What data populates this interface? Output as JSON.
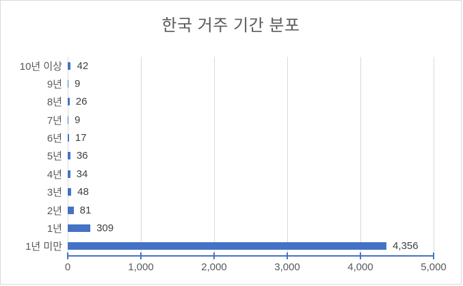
{
  "chart_data": {
    "type": "bar",
    "orientation": "horizontal",
    "title": "한국 거주 기간 분포",
    "categories": [
      "10년 이상",
      "9년",
      "8년",
      "7년",
      "6년",
      "5년",
      "4년",
      "3년",
      "2년",
      "1년",
      "1년 미만"
    ],
    "values": [
      42,
      9,
      26,
      9,
      17,
      36,
      34,
      48,
      81,
      309,
      4356
    ],
    "value_labels": [
      "42",
      "9",
      "26",
      "9",
      "17",
      "36",
      "34",
      "48",
      "81",
      "309",
      "4,356"
    ],
    "xlabel": "",
    "ylabel": "",
    "xlim": [
      0,
      5000
    ],
    "x_ticks": [
      0,
      1000,
      2000,
      3000,
      4000,
      5000
    ],
    "x_tick_labels": [
      "0",
      "1,000",
      "2,000",
      "3,000",
      "4,000",
      "5,000"
    ],
    "grid": "vertical-major",
    "legend": "none",
    "colors": {
      "bar": "#4472C4",
      "axis_line": "#4472C4",
      "gridline": "#D9D9D9",
      "tick_label": "#595959",
      "category_label": "#595959",
      "value_label": "#404040",
      "title": "#595959",
      "background": "#FFFFFF",
      "border": "#D9D9D9"
    }
  }
}
